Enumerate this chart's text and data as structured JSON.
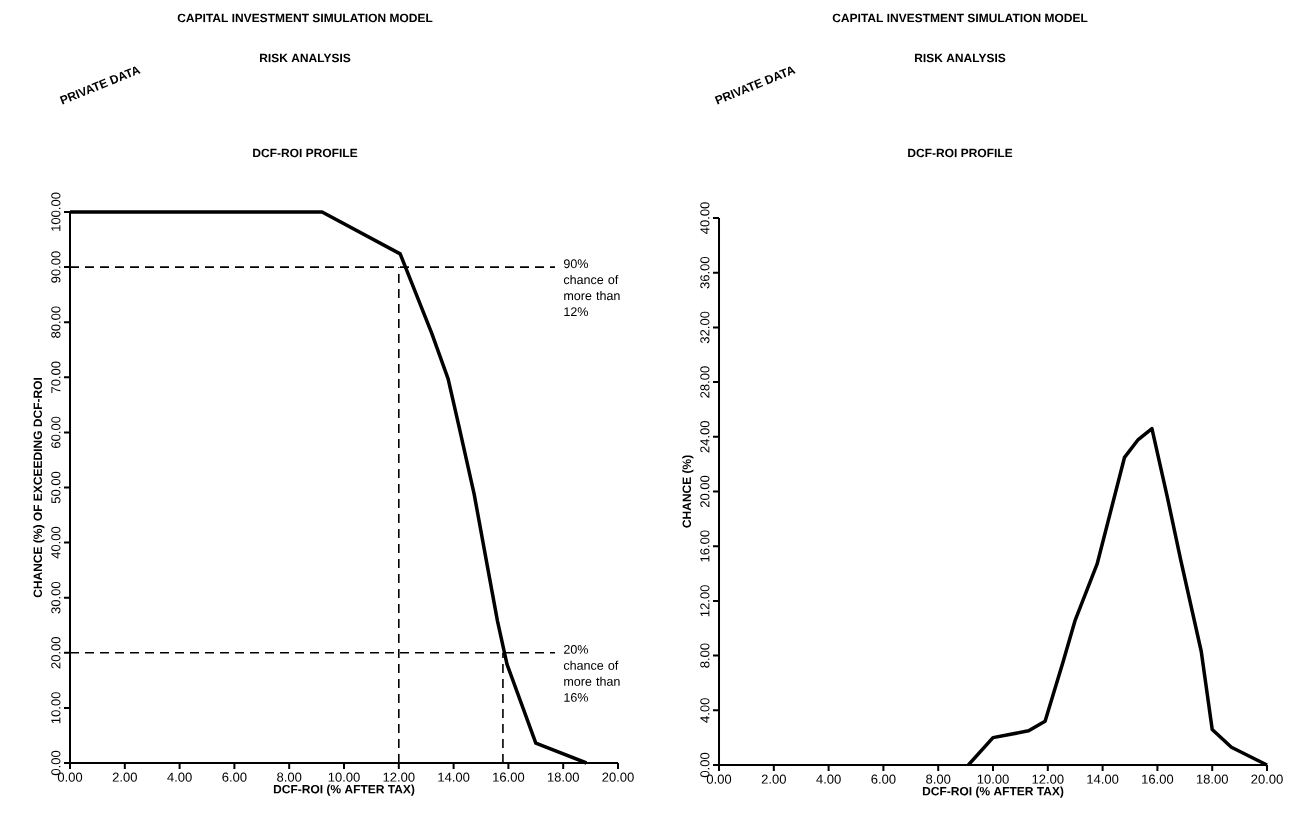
{
  "chart_data": [
    {
      "type": "line",
      "title": "CAPITAL INVESTMENT SIMULATION MODEL",
      "subtitle": "RISK ANALYSIS",
      "annotations": [
        "PRIVATE DATA",
        "DCF-ROI PROFILE"
      ],
      "ref_lines": [
        {
          "axis": "y",
          "value": 90,
          "label": "90% chance of more than 12%",
          "line_style": "dashed"
        },
        {
          "axis": "x",
          "value": 12,
          "line_style": "dashed"
        },
        {
          "axis": "y",
          "value": 20,
          "label": "20% chance of more than 16%",
          "line_style": "dashed"
        },
        {
          "axis": "x",
          "value": 15.8,
          "line_style": "dashed"
        }
      ],
      "xlabel": "DCF-ROI (% AFTER TAX)",
      "ylabel": "CHANCE (%) OF EXCEEDING DCF-ROI",
      "x": [
        0,
        9.2,
        12.05,
        13.2,
        13.8,
        14.2,
        14.75,
        15.2,
        15.6,
        15.95,
        17.0,
        18.85
      ],
      "values": [
        100,
        100,
        92.4,
        78,
        69.7,
        61,
        48.8,
        36.6,
        25.8,
        17.9,
        3.6,
        0
      ],
      "color": "#000000",
      "xlim": [
        0,
        20
      ],
      "ylim": [
        0,
        100
      ],
      "xticks": [
        {
          "value": 0,
          "label": "0.00"
        },
        {
          "value": 2,
          "label": "2.00"
        },
        {
          "value": 4,
          "label": "4.00"
        },
        {
          "value": 6,
          "label": "6.00"
        },
        {
          "value": 8,
          "label": "8.00"
        },
        {
          "value": 10,
          "label": "10.00"
        },
        {
          "value": 12,
          "label": "12.00"
        },
        {
          "value": 14,
          "label": "14.00"
        },
        {
          "value": 16,
          "label": "16.00"
        },
        {
          "value": 18,
          "label": "18.00"
        },
        {
          "value": 20,
          "label": "20.00"
        }
      ],
      "yticks": [
        {
          "value": 0,
          "label": "0.00"
        },
        {
          "value": 10,
          "label": "10.00"
        },
        {
          "value": 20,
          "label": "20.00"
        },
        {
          "value": 30,
          "label": "30.00"
        },
        {
          "value": 40,
          "label": "40.00"
        },
        {
          "value": 50,
          "label": "50.00"
        },
        {
          "value": 60,
          "label": "60.00"
        },
        {
          "value": 70,
          "label": "70.00"
        },
        {
          "value": 80,
          "label": "80.00"
        },
        {
          "value": 90,
          "label": "90.00"
        },
        {
          "value": 100,
          "label": "100.00"
        }
      ]
    },
    {
      "type": "line",
      "title": "CAPITAL INVESTMENT SIMULATION MODEL",
      "subtitle": "RISK ANALYSIS",
      "annotations": [
        "PRIVATE DATA",
        "DCF-ROI PROFILE"
      ],
      "xlabel": "DCF-ROI (% AFTER TAX)",
      "ylabel": "CHANCE (%)",
      "x": [
        9.1,
        10.0,
        11.3,
        11.9,
        12.55,
        13.0,
        13.8,
        14.8,
        15.3,
        15.8,
        16.35,
        16.85,
        17.6,
        18.0,
        18.7,
        20.0
      ],
      "values": [
        0,
        2.0,
        2.5,
        3.2,
        7.5,
        10.6,
        14.7,
        22.5,
        23.8,
        24.6,
        19.7,
        15.0,
        8.3,
        2.6,
        1.3,
        0
      ],
      "color": "#000000",
      "xlim": [
        0,
        20
      ],
      "ylim": [
        0,
        40
      ],
      "xticks": [
        {
          "value": 0,
          "label": "0.00"
        },
        {
          "value": 2,
          "label": "2.00"
        },
        {
          "value": 4,
          "label": "4.00"
        },
        {
          "value": 6,
          "label": "6.00"
        },
        {
          "value": 8,
          "label": "8.00"
        },
        {
          "value": 10,
          "label": "10.00"
        },
        {
          "value": 12,
          "label": "12.00"
        },
        {
          "value": 14,
          "label": "14.00"
        },
        {
          "value": 16,
          "label": "16.00"
        },
        {
          "value": 18,
          "label": "18.00"
        },
        {
          "value": 20,
          "label": "20.00"
        }
      ],
      "yticks": [
        {
          "value": 0,
          "label": "0.00"
        },
        {
          "value": 4,
          "label": "4.00"
        },
        {
          "value": 8,
          "label": "8.00"
        },
        {
          "value": 12,
          "label": "12.00"
        },
        {
          "value": 16,
          "label": "16.00"
        },
        {
          "value": 20,
          "label": "20.00"
        },
        {
          "value": 24,
          "label": "24.00"
        },
        {
          "value": 28,
          "label": "28.00"
        },
        {
          "value": 32,
          "label": "32.00"
        },
        {
          "value": 36,
          "label": "36.00"
        },
        {
          "value": 40,
          "label": "40.00"
        }
      ]
    }
  ]
}
